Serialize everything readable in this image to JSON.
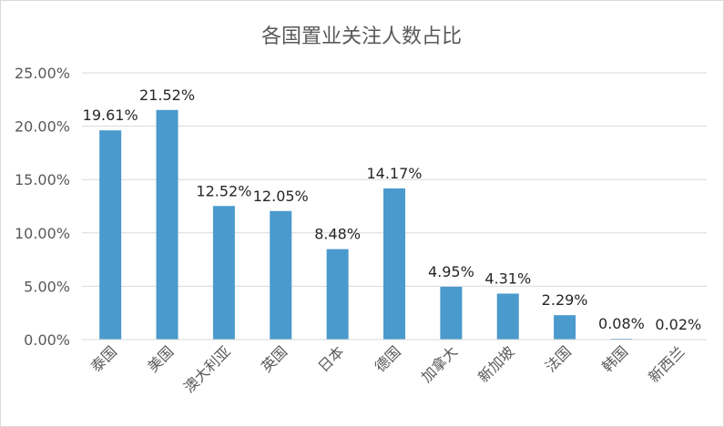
{
  "chart_data": {
    "type": "bar",
    "title": "各国置业关注人数占比",
    "xlabel": "",
    "ylabel": "",
    "categories": [
      "泰国",
      "美国",
      "澳大利亚",
      "英国",
      "日本",
      "德国",
      "加拿大",
      "新加坡",
      "法国",
      "韩国",
      "新西兰"
    ],
    "values": [
      19.61,
      21.52,
      12.52,
      12.05,
      8.48,
      14.17,
      4.95,
      4.31,
      2.29,
      0.08,
      0.02
    ],
    "data_labels": [
      "19.61%",
      "21.52%",
      "12.52%",
      "12.05%",
      "8.48%",
      "14.17%",
      "4.95%",
      "4.31%",
      "2.29%",
      "0.08%",
      "0.02%"
    ],
    "yticks": [
      0,
      5,
      10,
      15,
      20,
      25
    ],
    "ytick_labels": [
      "0.00%",
      "5.00%",
      "10.00%",
      "15.00%",
      "20.00%",
      "25.00%"
    ],
    "ylim": [
      0,
      25
    ],
    "grid": true,
    "legend": "none",
    "bar_color": "#4a9acd",
    "grid_color": "#d9d9d9"
  }
}
